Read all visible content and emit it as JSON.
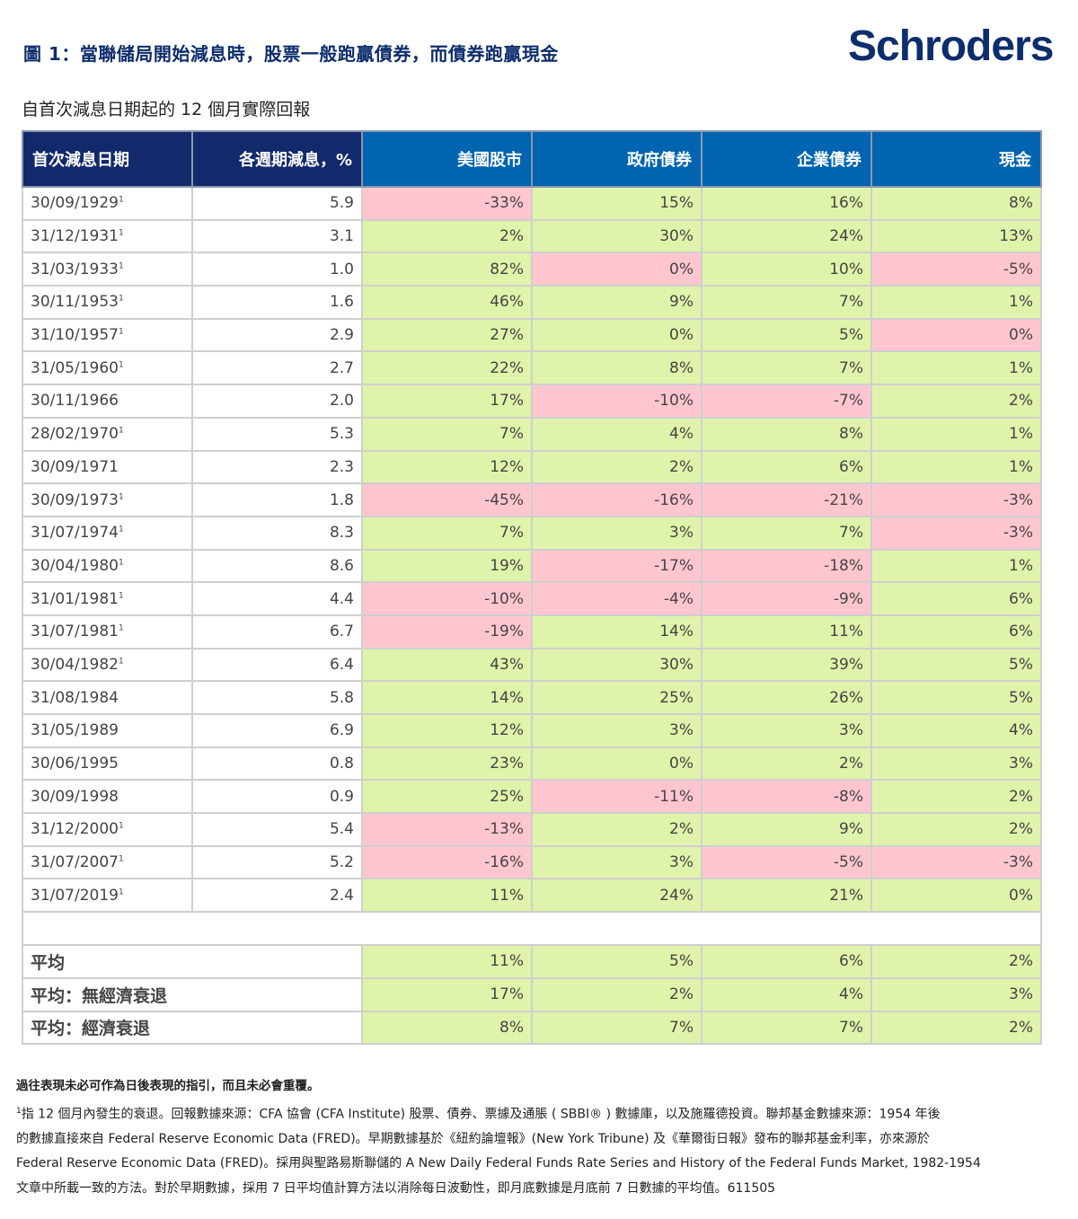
{
  "header": {
    "title": "圖 1：當聯儲局開始減息時，股票一般跑贏債券，而債券跑贏現金",
    "brand": "Schroders",
    "subtitle": "自首次減息日期起的 12 個月實際回報"
  },
  "colors": {
    "header_navy": "#13296b",
    "header_blue": "#0064b0",
    "positive_fill": "#e0f3aa",
    "negative_fill": "#ffc6d0",
    "brand": "#0d2d6c"
  },
  "table": {
    "columns": [
      "首次減息日期",
      "各週期減息，%",
      "美國股市",
      "政府債券",
      "企業債券",
      "現金"
    ],
    "rows": [
      {
        "date": "30/09/1929",
        "sup": "1",
        "cut": "5.9",
        "equity": "-33%",
        "gov": "15%",
        "corp": "16%",
        "cash": "8%"
      },
      {
        "date": "31/12/1931",
        "sup": "1",
        "cut": "3.1",
        "equity": "2%",
        "gov": "30%",
        "corp": "24%",
        "cash": "13%"
      },
      {
        "date": "31/03/1933",
        "sup": "1",
        "cut": "1.0",
        "equity": "82%",
        "gov": "0%",
        "corp": "10%",
        "cash": "-5%"
      },
      {
        "date": "30/11/1953",
        "sup": "1",
        "cut": "1.6",
        "equity": "46%",
        "gov": "9%",
        "corp": "7%",
        "cash": "1%"
      },
      {
        "date": "31/10/1957",
        "sup": "1",
        "cut": "2.9",
        "equity": "27%",
        "gov": "0%",
        "corp": "5%",
        "cash": "0%"
      },
      {
        "date": "31/05/1960",
        "sup": "1",
        "cut": "2.7",
        "equity": "22%",
        "gov": "8%",
        "corp": "7%",
        "cash": "1%"
      },
      {
        "date": "30/11/1966",
        "sup": "",
        "cut": "2.0",
        "equity": "17%",
        "gov": "-10%",
        "corp": "-7%",
        "cash": "2%"
      },
      {
        "date": "28/02/1970",
        "sup": "1",
        "cut": "5.3",
        "equity": "7%",
        "gov": "4%",
        "corp": "8%",
        "cash": "1%"
      },
      {
        "date": "30/09/1971",
        "sup": "",
        "cut": "2.3",
        "equity": "12%",
        "gov": "2%",
        "corp": "6%",
        "cash": "1%"
      },
      {
        "date": "30/09/1973",
        "sup": "1",
        "cut": "1.8",
        "equity": "-45%",
        "gov": "-16%",
        "corp": "-21%",
        "cash": "-3%"
      },
      {
        "date": "31/07/1974",
        "sup": "1",
        "cut": "8.3",
        "equity": "7%",
        "gov": "3%",
        "corp": "7%",
        "cash": "-3%"
      },
      {
        "date": "30/04/1980",
        "sup": "1",
        "cut": "8.6",
        "equity": "19%",
        "gov": "-17%",
        "corp": "-18%",
        "cash": "1%"
      },
      {
        "date": "31/01/1981",
        "sup": "1",
        "cut": "4.4",
        "equity": "-10%",
        "gov": "-4%",
        "corp": "-9%",
        "cash": "6%"
      },
      {
        "date": "31/07/1981",
        "sup": "1",
        "cut": "6.7",
        "equity": "-19%",
        "gov": "14%",
        "corp": "11%",
        "cash": "6%"
      },
      {
        "date": "30/04/1982",
        "sup": "1",
        "cut": "6.4",
        "equity": "43%",
        "gov": "30%",
        "corp": "39%",
        "cash": "5%"
      },
      {
        "date": "31/08/1984",
        "sup": "",
        "cut": "5.8",
        "equity": "14%",
        "gov": "25%",
        "corp": "26%",
        "cash": "5%"
      },
      {
        "date": "31/05/1989",
        "sup": "",
        "cut": "6.9",
        "equity": "12%",
        "gov": "3%",
        "corp": "3%",
        "cash": "4%"
      },
      {
        "date": "30/06/1995",
        "sup": "",
        "cut": "0.8",
        "equity": "23%",
        "gov": "0%",
        "corp": "2%",
        "cash": "3%"
      },
      {
        "date": "30/09/1998",
        "sup": "",
        "cut": "0.9",
        "equity": "25%",
        "gov": "-11%",
        "corp": "-8%",
        "cash": "2%"
      },
      {
        "date": "31/12/2000",
        "sup": "1",
        "cut": "5.4",
        "equity": "-13%",
        "gov": "2%",
        "corp": "9%",
        "cash": "2%"
      },
      {
        "date": "31/07/2007",
        "sup": "1",
        "cut": "5.2",
        "equity": "-16%",
        "gov": "3%",
        "corp": "-5%",
        "cash": "-3%"
      },
      {
        "date": "31/07/2019",
        "sup": "1",
        "cut": "2.4",
        "equity": "11%",
        "gov": "24%",
        "corp": "21%",
        "cash": "0%"
      }
    ],
    "averages": [
      {
        "label": "平均",
        "equity": "11%",
        "gov": "5%",
        "corp": "6%",
        "cash": "2%"
      },
      {
        "label": "平均：無經濟衰退",
        "equity": "17%",
        "gov": "2%",
        "corp": "4%",
        "cash": "3%"
      },
      {
        "label": "平均：經濟衰退",
        "equity": "8%",
        "gov": "7%",
        "corp": "7%",
        "cash": "2%"
      }
    ]
  },
  "footnotes": {
    "disclaimer": "過往表現未必可作為日後表現的指引，而且未必會重覆。",
    "note_marker": "1",
    "note_line1": "指 12 個月內發生的衰退。回報數據來源：CFA 協會 (CFA Institute) 股票、債券、票據及通脹 ( SBBI® ) 數據庫，以及施羅德投資。聯邦基金數據來源：1954 年後",
    "note_line2": "的數據直接來自 Federal Reserve Economic Data (FRED)。早期數據基於《紐約論壇報》(New York Tribune) 及《華爾街日報》發布的聯邦基金利率，亦來源於",
    "note_line3": "Federal Reserve Economic Data (FRED)。採用與聖路易斯聯儲的 A New Daily Federal Funds Rate Series and History of the Federal Funds Market, 1982-1954",
    "note_line4": "文章中所載一致的方法。對於早期數據，採用 7 日平均值計算方法以消除每日波動性，即月底數據是月底前 7 日數據的平均值。611505"
  }
}
